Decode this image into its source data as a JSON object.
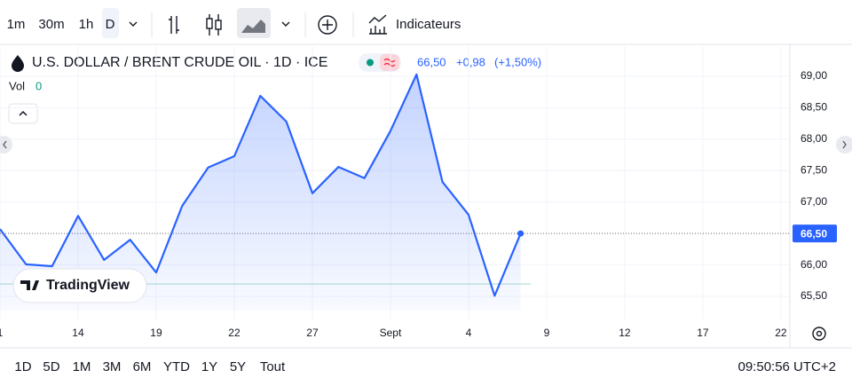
{
  "toolbar": {
    "intervals": [
      "1m",
      "30m",
      "1h",
      "D"
    ],
    "indicators": "Indicateurs"
  },
  "chart_data": {
    "type": "line",
    "title": "U.S. DOLLAR / BRENT CRUDE OIL · 1D · ICE",
    "price": "66,50",
    "change": "+0,98",
    "change_pct": "(+1,50%)",
    "volume_label": "Vol",
    "volume": "0",
    "watermark": "TradingView",
    "color": "#2962ff",
    "categories": [
      "1",
      null,
      null,
      "14",
      null,
      null,
      "19",
      null,
      null,
      "22",
      null,
      null,
      "27",
      null,
      null,
      "Sept",
      null,
      null,
      "4",
      null,
      null,
      "9",
      null,
      null,
      "12",
      null,
      null,
      "17",
      null,
      null,
      "22"
    ],
    "values": [
      66.57,
      66.01,
      65.98,
      66.78,
      66.08,
      66.4,
      65.88,
      66.94,
      67.55,
      67.73,
      68.69,
      68.28,
      67.14,
      67.56,
      67.38,
      68.13,
      69.03,
      67.32,
      66.8,
      65.51,
      66.5,
      null,
      null,
      null,
      null,
      null,
      null,
      null,
      null,
      null,
      null
    ],
    "ylim": [
      64.71,
      69.48
    ],
    "yticks": [
      {
        "value": 65.5,
        "label": "65,50"
      },
      {
        "value": 66,
        "label": "66,00"
      },
      {
        "value": 67,
        "label": "67,00"
      },
      {
        "value": 67.5,
        "label": "67,50"
      },
      {
        "value": 68,
        "label": "68,00"
      },
      {
        "value": 68.5,
        "label": "68,50"
      },
      {
        "value": 69,
        "label": "69,00"
      }
    ],
    "last_label": "66,50"
  },
  "range_buttons": [
    "1D",
    "5D",
    "1M",
    "3M",
    "6M",
    "YTD",
    "1Y",
    "5Y",
    "Tout"
  ],
  "clock": "09:50:56 UTC+2"
}
